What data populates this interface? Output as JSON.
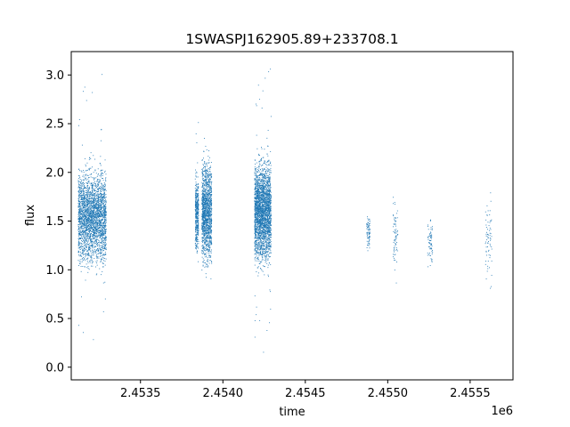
{
  "chart_data": {
    "type": "scatter",
    "title": "1SWASPJ162905.89+233708.1",
    "xlabel": "time",
    "ylabel": "flux",
    "x_offset_label": "1e6",
    "xlim": [
      2453080,
      2455760
    ],
    "ylim": [
      -0.13,
      3.24
    ],
    "x_ticks": [
      2453500,
      2454000,
      2454500,
      2455000,
      2455500
    ],
    "x_tick_labels": [
      "2.4535",
      "2.4540",
      "2.4545",
      "2.4550",
      "2.4555"
    ],
    "y_ticks": [
      0.0,
      0.5,
      1.0,
      1.5,
      2.0,
      2.5,
      3.0
    ],
    "y_tick_labels": [
      "0.0",
      "0.5",
      "1.0",
      "1.5",
      "2.0",
      "2.5",
      "3.0"
    ],
    "grid": false,
    "marker_color": "#1f77b4",
    "observing_seasons": [
      {
        "x_start": 2453120,
        "x_end": 2453290,
        "y_core": [
          1.0,
          2.1
        ],
        "y_range": [
          0.28,
          3.05
        ],
        "density": "very high"
      },
      {
        "x_start": 2453830,
        "x_end": 2453850,
        "y_core": [
          1.1,
          2.05
        ],
        "y_range": [
          0.02,
          2.8
        ],
        "density": "medium"
      },
      {
        "x_start": 2453870,
        "x_end": 2453930,
        "y_core": [
          1.0,
          2.2
        ],
        "y_range": [
          0.72,
          2.45
        ],
        "density": "high"
      },
      {
        "x_start": 2454190,
        "x_end": 2454290,
        "y_core": [
          1.0,
          2.2
        ],
        "y_range": [
          0.15,
          3.08
        ],
        "density": "very high"
      },
      {
        "x_start": 2454870,
        "x_end": 2454890,
        "y_core": [
          1.2,
          1.6
        ],
        "y_range": [
          1.2,
          1.7
        ],
        "density": "low"
      },
      {
        "x_start": 2455030,
        "x_end": 2455060,
        "y_core": [
          0.9,
          1.8
        ],
        "y_range": [
          0.65,
          1.95
        ],
        "density": "low"
      },
      {
        "x_start": 2455240,
        "x_end": 2455270,
        "y_core": [
          1.0,
          1.6
        ],
        "y_range": [
          0.48,
          2.87
        ],
        "density": "low"
      },
      {
        "x_start": 2455590,
        "x_end": 2455630,
        "y_core": [
          0.8,
          1.8
        ],
        "y_range": [
          0.62,
          3.02
        ],
        "density": "low"
      }
    ]
  }
}
